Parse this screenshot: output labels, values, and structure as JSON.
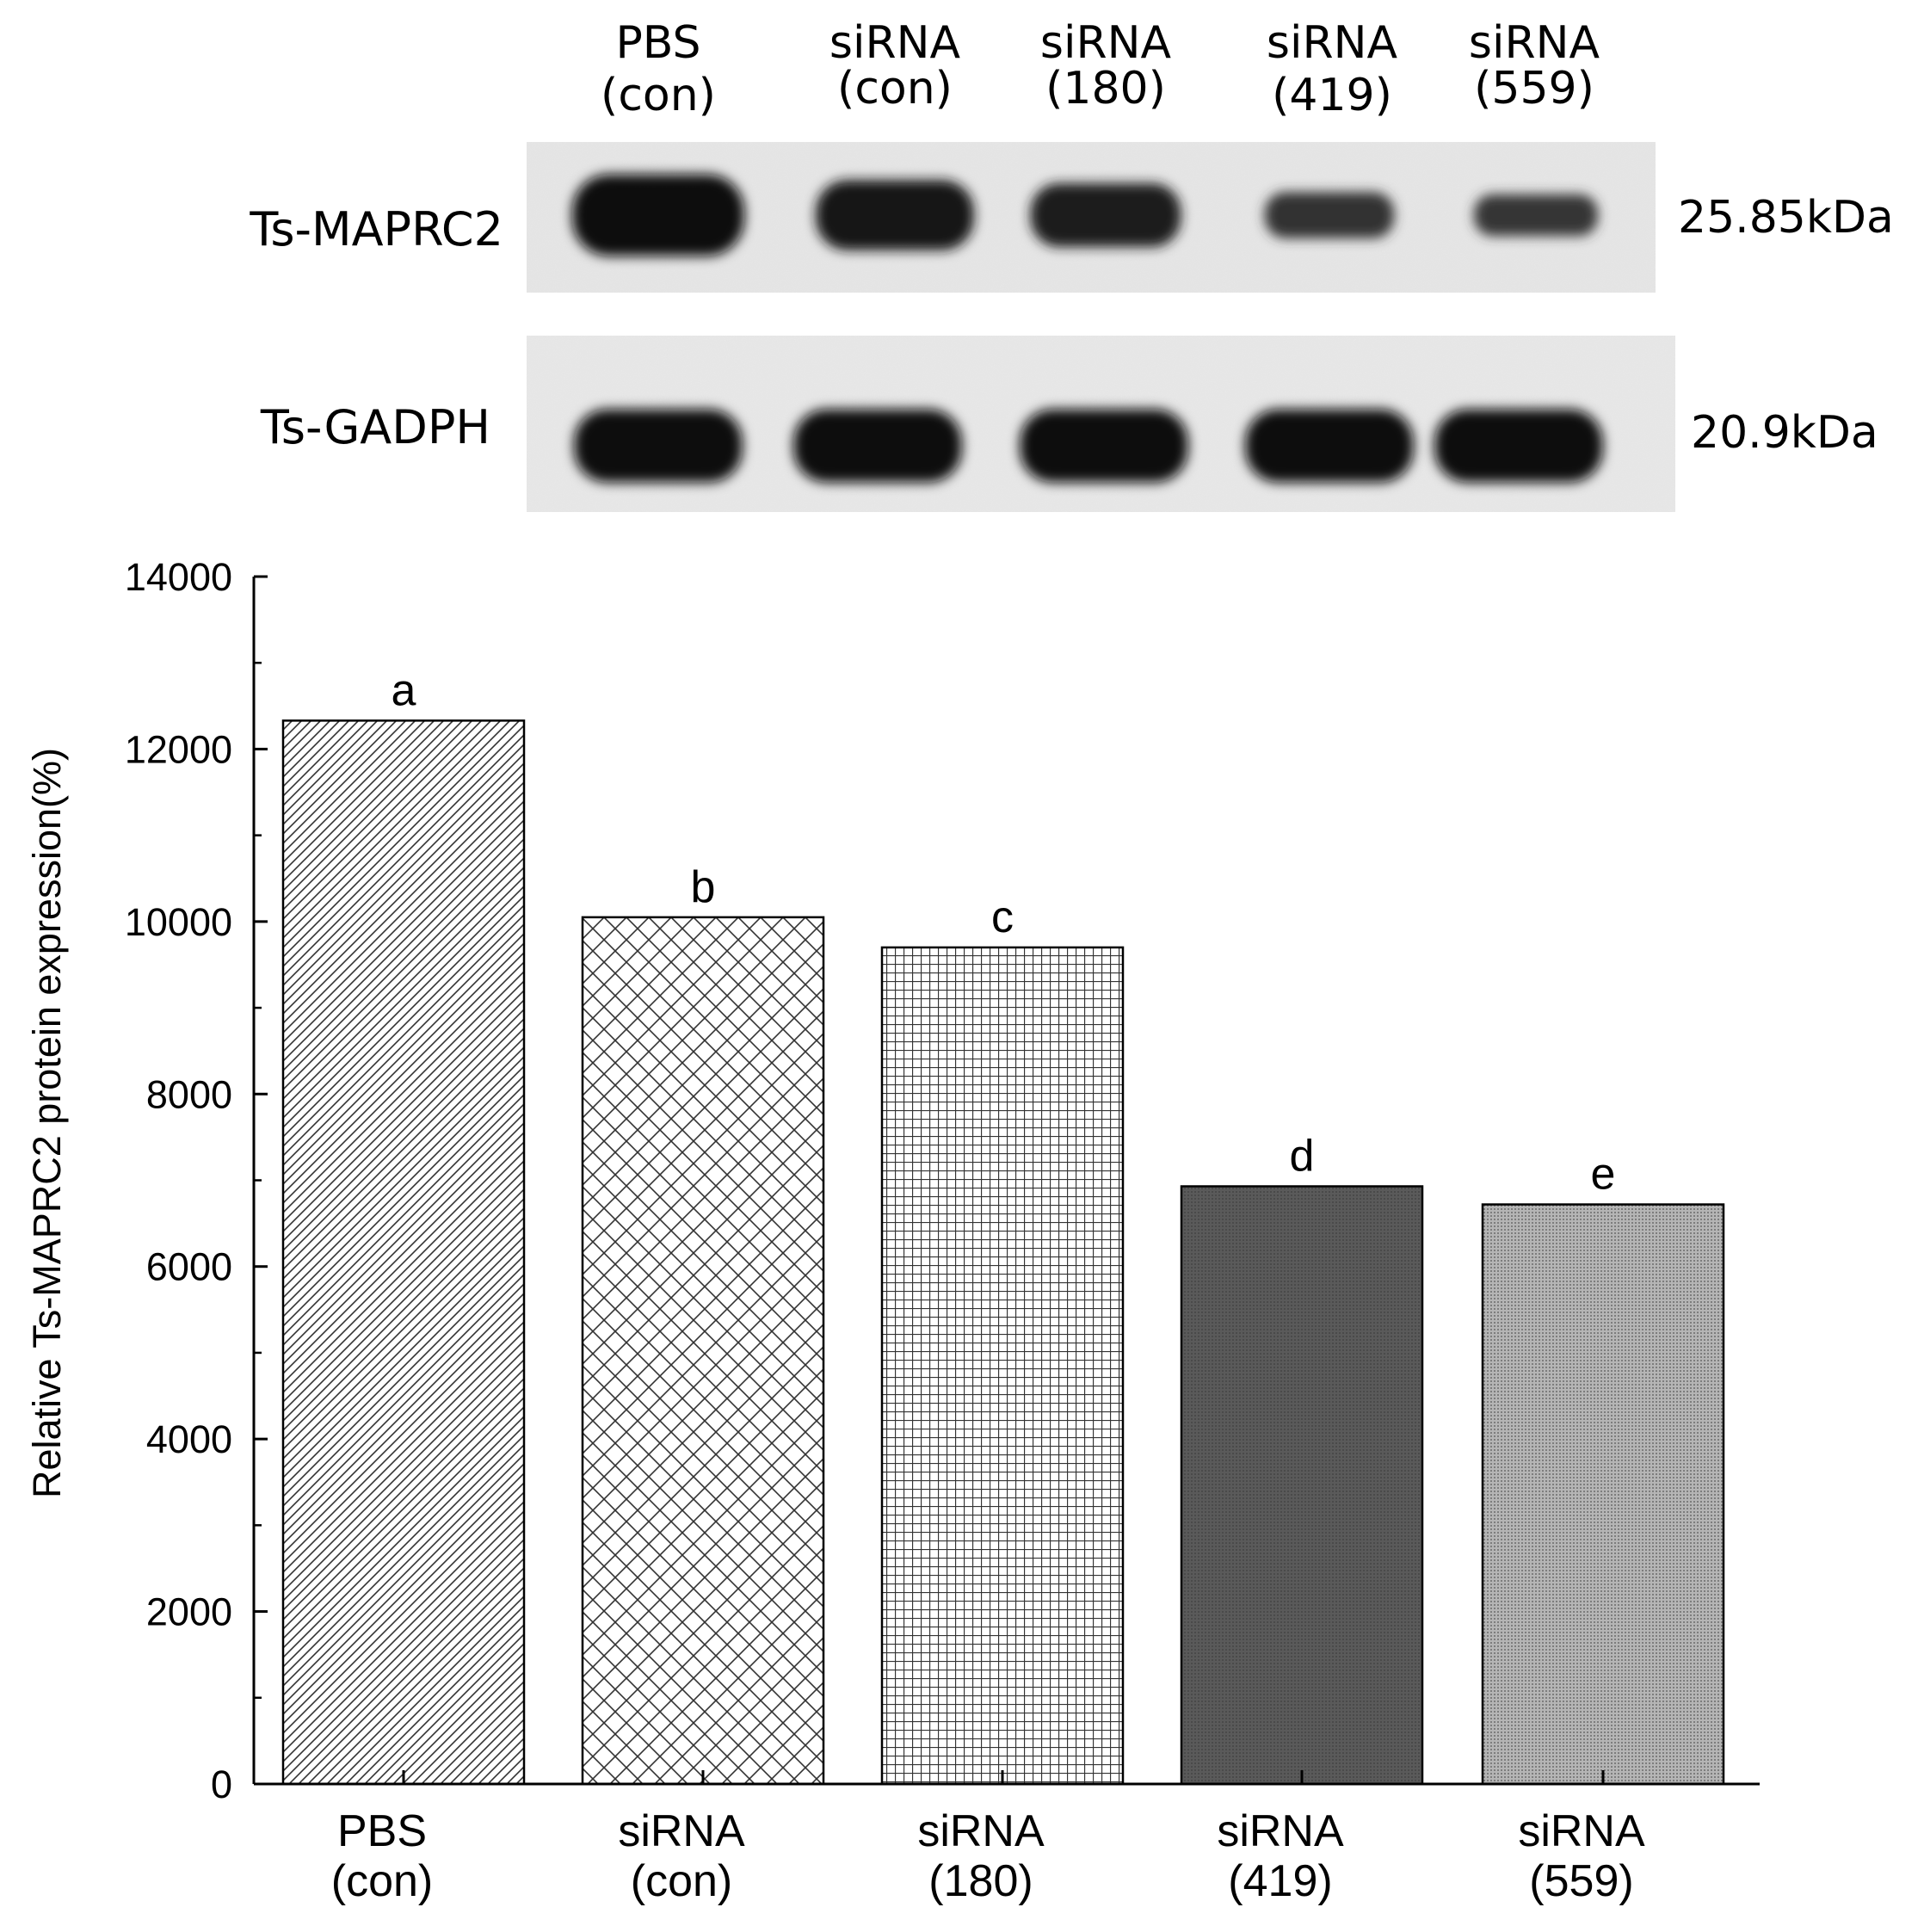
{
  "blot": {
    "lane_headers": [
      {
        "line1": "PBS",
        "line2": "(con)"
      },
      {
        "line1": "siRNA",
        "line2": "(con)"
      },
      {
        "line1": "siRNA",
        "line2": "(180)"
      },
      {
        "line1": "siRNA",
        "line2": "(419)"
      },
      {
        "line1": "siRNA",
        "line2": "(559)"
      }
    ],
    "rows": [
      {
        "label": "Ts-MAPRC2",
        "size": "25.85kDa",
        "band_intensity": [
          1.0,
          0.82,
          0.72,
          0.45,
          0.38
        ]
      },
      {
        "label": "Ts-GADPH",
        "size": "20.9kDa",
        "band_intensity": [
          0.95,
          0.95,
          0.95,
          0.95,
          0.95
        ]
      }
    ]
  },
  "chart_data": {
    "type": "bar",
    "title": "",
    "xlabel": "",
    "ylabel": "Relative Ts-MAPRC2 protein expression(%)",
    "ylim": [
      0,
      14000
    ],
    "yticks": [
      "0",
      "2000",
      "4000",
      "6000",
      "8000",
      "10000",
      "12000",
      "14000"
    ],
    "categories": [
      {
        "line1": "PBS",
        "line2": "(con)"
      },
      {
        "line1": "siRNA",
        "line2": "(con)"
      },
      {
        "line1": "siRNA",
        "line2": "(180)"
      },
      {
        "line1": "siRNA",
        "line2": "(419)"
      },
      {
        "line1": "siRNA",
        "line2": "(559)"
      }
    ],
    "values": [
      12330,
      10050,
      9700,
      6930,
      6720
    ],
    "significance_letters": [
      "a",
      "b",
      "c",
      "d",
      "e"
    ],
    "patterns": [
      "diagonal-hatch",
      "crosshatch",
      "grid",
      "dark-fill",
      "fine-dots"
    ],
    "grid": false,
    "legend": "none"
  }
}
